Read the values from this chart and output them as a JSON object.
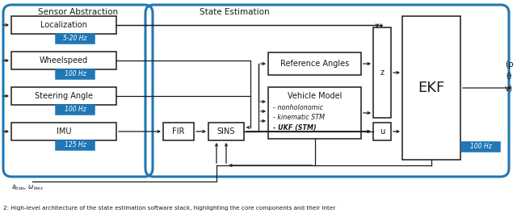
{
  "bg_color": "#ffffff",
  "blue": "#2077b4",
  "black": "#1a1a1a",
  "white": "#ffffff",
  "sensor_abstraction": "Sensor Abstraction",
  "state_estimation": "State Estimation",
  "localization": "Localization",
  "wheelspeed": "Wheelspeed",
  "steering_angle": "Steering Angle",
  "imu": "IMU",
  "fir": "FIR",
  "sins": "SINS",
  "ref_angles": "Reference Angles",
  "vehicle_model": "Vehicle Model",
  "vm_line1": "- nonholonomic",
  "vm_line2": "- kinematic STM",
  "vm_line3": "- UKF (STM)",
  "z_lbl": "z",
  "u_lbl": "u",
  "ekf_lbl": "EKF",
  "freq_520": "5-20 Hz",
  "freq_100": "100 Hz",
  "freq_125": "125 Hz",
  "out_lbl_p": "(ρ",
  "out_lbl_t": "θ",
  "out_lbl_v": "v)",
  "bias_lbl": "$a_{bias}$, $\\omega_{bias}$",
  "caption": "2: High-level architecture of the state estimation software stack, highlighting the core components and their inter"
}
